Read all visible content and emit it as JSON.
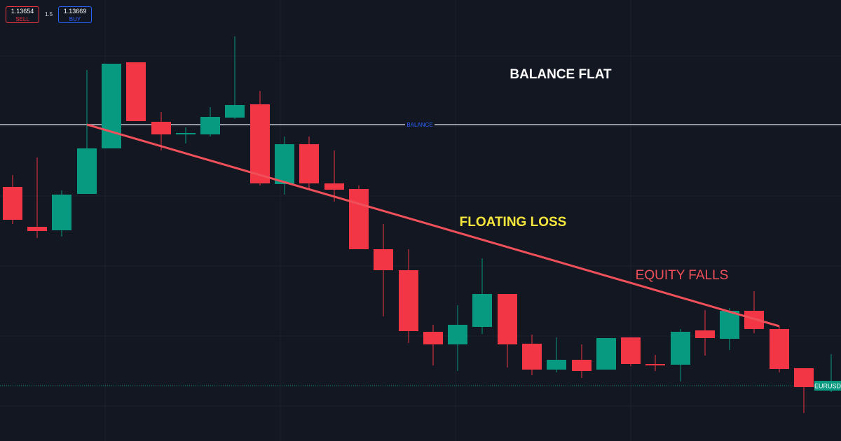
{
  "trade_panel": {
    "sell_price": "1.13654",
    "sell_label": "SELL",
    "spread": "1.5",
    "buy_price": "1.13669",
    "buy_label": "BUY"
  },
  "chart": {
    "balance_tag": "BALANCE",
    "symbol_tag": "EURUSD",
    "annotations": {
      "balance": "BALANCE FLAT",
      "floating": "FLOATING LOSS",
      "equity": "EQUITY FALLS"
    }
  }
}
